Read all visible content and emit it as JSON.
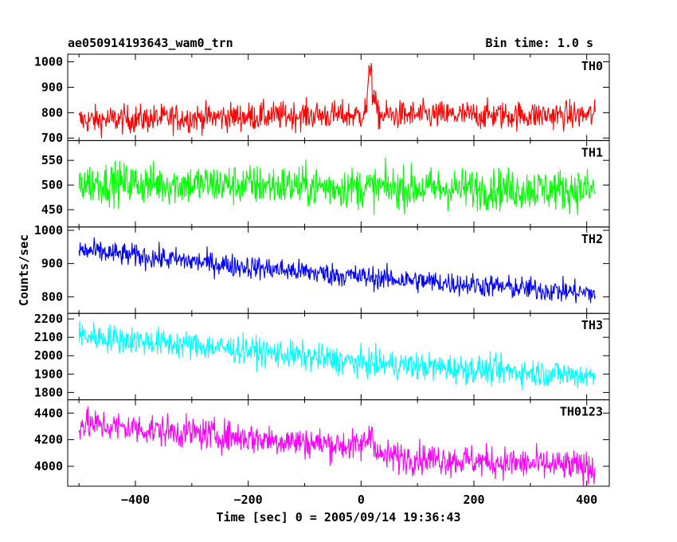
{
  "header": {
    "title": "ae050914193643_wam0_trn",
    "bin_time": "Bin time: 1.0 s"
  },
  "axes": {
    "xlabel": "Time [sec] 0 = 2005/09/14 19:36:43",
    "ylabel": "Counts/sec"
  },
  "chart_data": {
    "type": "line",
    "title": "ae050914193643_wam0_trn",
    "xlabel": "Time [sec] 0 = 2005/09/14 19:36:43",
    "ylabel": "Counts/sec",
    "xlim": [
      -520,
      440
    ],
    "xticks": [
      -400,
      -200,
      0,
      200,
      400
    ],
    "x_range_data": [
      -500,
      415
    ],
    "bin_time_s": 1.0,
    "panels": [
      {
        "name": "TH0",
        "color": "#ff0000",
        "ylim": [
          690,
          1030
        ],
        "yticks": [
          700,
          800,
          900,
          1000
        ],
        "trend": [
          [
            -500,
            770
          ],
          [
            -100,
            790
          ],
          [
            0,
            790
          ],
          [
            10,
            820
          ],
          [
            15,
            960
          ],
          [
            18,
            1010
          ],
          [
            20,
            880
          ],
          [
            30,
            790
          ],
          [
            415,
            790
          ]
        ],
        "noise": 40
      },
      {
        "name": "TH1",
        "color": "#00ff00",
        "ylim": [
          415,
          590
        ],
        "yticks": [
          450,
          500,
          550
        ],
        "trend": [
          [
            -500,
            505
          ],
          [
            -200,
            500
          ],
          [
            0,
            495
          ],
          [
            415,
            490
          ]
        ],
        "noise": 30
      },
      {
        "name": "TH2",
        "color": "#0000ff",
        "ylim": [
          750,
          1010
        ],
        "yticks": [
          800,
          900,
          1000
        ],
        "trend": [
          [
            -500,
            940
          ],
          [
            -200,
            890
          ],
          [
            0,
            860
          ],
          [
            415,
            810
          ]
        ],
        "noise": 25
      },
      {
        "name": "TH3",
        "color": "#00ffff",
        "ylim": [
          1760,
          2230
        ],
        "yticks": [
          1800,
          1900,
          2000,
          2100,
          2200
        ],
        "trend": [
          [
            -500,
            2110
          ],
          [
            -200,
            2030
          ],
          [
            0,
            1960
          ],
          [
            415,
            1890
          ]
        ],
        "noise": 55
      },
      {
        "name": "TH0123",
        "color": "#ff00ff",
        "ylim": [
          3850,
          4500
        ],
        "yticks": [
          4000,
          4200,
          4400
        ],
        "trend": [
          [
            -500,
            4320
          ],
          [
            -100,
            4180
          ],
          [
            0,
            4150
          ],
          [
            10,
            4200
          ],
          [
            20,
            4260
          ],
          [
            30,
            4080
          ],
          [
            415,
            3990
          ]
        ],
        "noise": 85
      }
    ]
  }
}
